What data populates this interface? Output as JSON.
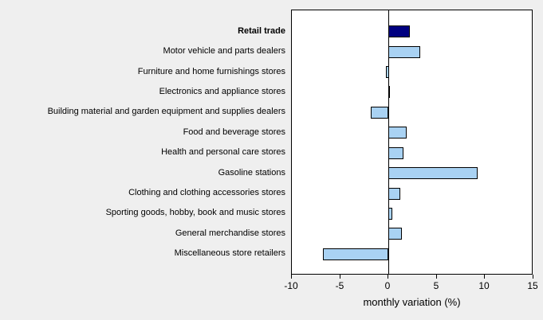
{
  "chart_data": {
    "type": "bar",
    "orientation": "horizontal",
    "title": "",
    "xlabel": "monthly variation (%)",
    "ylabel": "",
    "xlim": [
      -10,
      15
    ],
    "xticks": [
      "-10",
      "-5",
      "0",
      "5",
      "10",
      "15"
    ],
    "xtick_values": [
      -10,
      -5,
      0,
      5,
      10,
      15
    ],
    "grid": false,
    "legend": false,
    "categories": [
      "Retail trade",
      "Motor vehicle and parts dealers",
      "Furniture and home furnishings stores",
      "Electronics and appliance stores",
      "Building material and garden equipment and supplies dealers",
      "Food and beverage stores",
      "Health and personal care stores",
      "Gasoline stations",
      "Clothing and clothing accessories stores",
      "Sporting goods, hobby, book and music stores",
      "General merchandise stores",
      "Miscellaneous store retailers"
    ],
    "values": [
      2.2,
      3.3,
      -0.3,
      0.1,
      -1.8,
      1.9,
      1.6,
      9.2,
      1.2,
      0.4,
      1.4,
      -6.8
    ],
    "highlight_index": 0,
    "colors": {
      "bar_fill": "#a9d2f3",
      "highlight_fill": "#000080",
      "bar_border": "#000000",
      "plot_background": "#ffffff",
      "figure_background": "#efefef"
    }
  }
}
